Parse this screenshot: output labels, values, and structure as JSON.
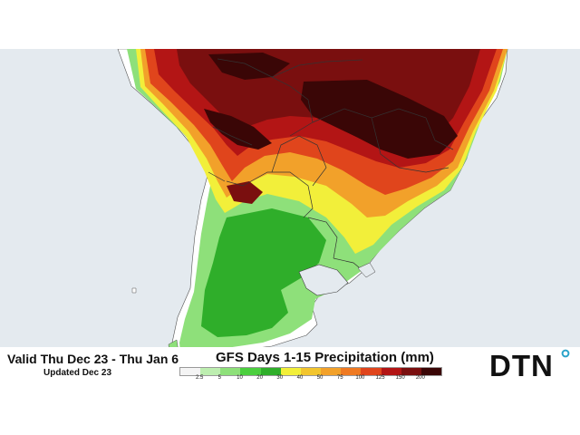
{
  "valid_range": "Valid Thu Dec 23 - Thu Jan 6",
  "updated": "Updated Dec 23",
  "title": "GFS Days 1-15 Precipitation (mm)",
  "legend": {
    "labels": [
      "2.5",
      "5",
      "10",
      "20",
      "30",
      "40",
      "50",
      "75",
      "100",
      "125",
      "150",
      "200"
    ],
    "colors": [
      "#f4f4f4",
      "#bdeeb0",
      "#8ee07a",
      "#4ccf3f",
      "#2fae2a",
      "#f2ef3a",
      "#f2c52e",
      "#f2a12a",
      "#ef7a22",
      "#e0451c",
      "#b31515",
      "#7a0f0f",
      "#3a0606"
    ]
  },
  "logo_text": "DTN",
  "colors": {
    "ocean": "#e4eaef",
    "land": "#ffffff",
    "border": "#333333",
    "logo_accent": "#2aa3c9"
  }
}
